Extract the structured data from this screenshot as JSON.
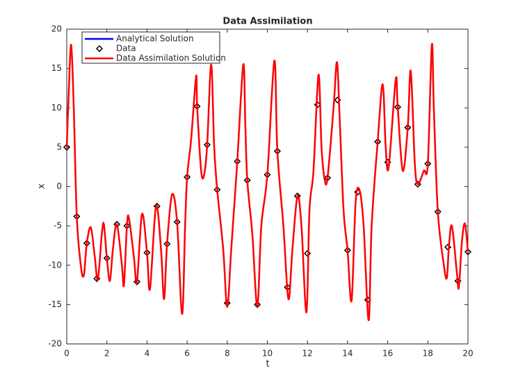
{
  "chart_data": {
    "type": "line",
    "title": "Data Assimilation",
    "xlabel": "t",
    "ylabel": "x",
    "xlim": [
      0,
      20
    ],
    "ylim": [
      -20,
      20
    ],
    "xticks": [
      0,
      2,
      4,
      6,
      8,
      10,
      12,
      14,
      16,
      18,
      20
    ],
    "yticks": [
      -20,
      -15,
      -10,
      -5,
      0,
      5,
      10,
      15,
      20
    ],
    "legend": "upper left",
    "x": [
      0,
      0.1,
      0.22,
      0.35,
      0.5,
      0.7,
      0.85,
      1.0,
      1.2,
      1.4,
      1.55,
      1.75,
      1.85,
      2.0,
      2.15,
      2.3,
      2.5,
      2.75,
      2.85,
      3.0,
      3.1,
      3.35,
      3.5,
      3.75,
      4.0,
      4.15,
      4.45,
      4.7,
      4.85,
      5.0,
      5.25,
      5.5,
      5.75,
      5.9,
      6.0,
      6.2,
      6.45,
      6.5,
      6.7,
      6.85,
      7.0,
      7.2,
      7.35,
      7.5,
      7.8,
      8.0,
      8.2,
      8.5,
      8.8,
      8.9,
      9.0,
      9.25,
      9.5,
      9.7,
      10.0,
      10.35,
      10.5,
      10.8,
      11.05,
      11.25,
      11.5,
      11.7,
      11.95,
      12.1,
      12.3,
      12.55,
      12.7,
      12.85,
      13.0,
      13.3,
      13.47,
      13.6,
      13.8,
      14.0,
      14.2,
      14.4,
      14.6,
      14.8,
      15.05,
      15.2,
      15.5,
      15.75,
      15.9,
      16.05,
      16.4,
      16.5,
      16.75,
      17.0,
      17.15,
      17.35,
      17.5,
      17.8,
      18.0,
      18.2,
      18.3,
      18.5,
      18.8,
      18.95,
      19.05,
      19.2,
      19.45,
      19.55,
      19.7,
      19.85,
      20
    ],
    "series": [
      {
        "name": "Analytical Solution",
        "color": "#0000ff",
        "values": [
          5,
          12,
          18,
          10,
          -3.8,
          -10,
          -11.3,
          -7.2,
          -5.2,
          -9,
          -11.8,
          -6,
          -4.8,
          -9.1,
          -12,
          -8,
          -4.8,
          -10,
          -12.5,
          -5,
          -4,
          -9,
          -12.1,
          -3.5,
          -8.4,
          -13,
          -2.5,
          -8,
          -14.3,
          -7.3,
          -1,
          -4.5,
          -16.2,
          -5,
          1.2,
          6,
          14,
          10.2,
          2,
          1.5,
          5.3,
          15.5,
          5,
          -0.4,
          -8,
          -15.3,
          -8,
          3.2,
          15.5,
          8,
          0.8,
          -6,
          -15.2,
          -5,
          1.5,
          16,
          4.5,
          -5,
          -14.3,
          -8,
          -1.2,
          -5,
          -16,
          -3,
          2,
          14.2,
          5,
          1,
          1.1,
          10,
          15.8,
          9,
          -3,
          -8.1,
          -14.5,
          -2,
          -0.5,
          -5,
          -17,
          -5,
          5.7,
          13,
          5,
          2.5,
          13.6,
          10.1,
          2,
          7.5,
          14.7,
          3,
          0.3,
          2,
          2.9,
          18,
          10,
          -3.2,
          -10,
          -11.6,
          -7.7,
          -5,
          -11,
          -12.8,
          -7,
          -4.7,
          -8.3
        ]
      },
      {
        "name": "Data",
        "type": "scatter",
        "color": "#000000",
        "x": [
          0,
          0.5,
          1,
          1.5,
          2,
          2.5,
          3,
          3.5,
          4,
          4.5,
          5,
          5.5,
          6,
          6.5,
          7,
          7.5,
          8,
          8.5,
          9,
          9.5,
          10,
          10.5,
          11,
          11.5,
          12,
          12.5,
          13,
          13.5,
          14,
          14.5,
          15,
          15.5,
          16,
          16.5,
          17,
          17.5,
          18,
          18.5,
          19,
          19.5,
          20
        ],
        "values": [
          5,
          -3.8,
          -7.2,
          -11.7,
          -9.1,
          -4.8,
          -5,
          -12.1,
          -8.4,
          -2.5,
          -7.3,
          -4.5,
          1.2,
          10.2,
          5.3,
          -0.4,
          -14.8,
          3.2,
          0.8,
          -15,
          1.5,
          4.5,
          -12.8,
          -1.2,
          -8.5,
          10.4,
          1.1,
          11,
          -8.1,
          -0.7,
          -14.4,
          5.7,
          3.1,
          10.1,
          7.5,
          0.3,
          2.9,
          -3.2,
          -7.7,
          -12,
          -8.3
        ]
      },
      {
        "name": "Data Assimilation Solution",
        "color": "#ff0000",
        "values": [
          5,
          12,
          18,
          10,
          -3.8,
          -10,
          -11.3,
          -7.2,
          -5.2,
          -9,
          -11.8,
          -6,
          -4.8,
          -9.1,
          -12,
          -8,
          -4.8,
          -10,
          -12.5,
          -5,
          -4,
          -9,
          -12.1,
          -3.5,
          -8.4,
          -13,
          -2.5,
          -8,
          -14.3,
          -7.3,
          -1,
          -4.5,
          -16.2,
          -5,
          1.2,
          6,
          14,
          10.2,
          2,
          1.5,
          5.3,
          15.5,
          5,
          -0.4,
          -8,
          -15.3,
          -8,
          3.2,
          15.5,
          8,
          0.8,
          -6,
          -15.2,
          -5,
          1.5,
          16,
          4.5,
          -5,
          -14.3,
          -8,
          -1.2,
          -5,
          -16,
          -3,
          2,
          14.2,
          5,
          1,
          1.1,
          10,
          15.8,
          9,
          -3,
          -8.1,
          -14.5,
          -2,
          -0.5,
          -5,
          -17,
          -5,
          5.7,
          13,
          5,
          2.5,
          13.6,
          10.1,
          2,
          7.5,
          14.7,
          3,
          0.3,
          2,
          2.9,
          18,
          10,
          -3.2,
          -10,
          -11.6,
          -7.7,
          -5,
          -11,
          -12.8,
          -7,
          -4.7,
          -8.3
        ]
      }
    ]
  }
}
